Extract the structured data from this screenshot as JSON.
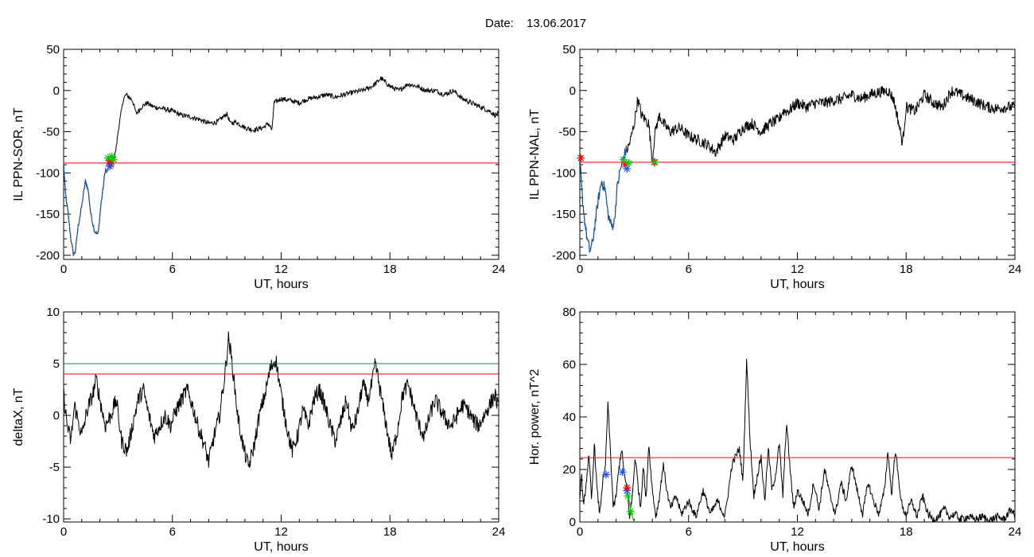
{
  "header": {
    "date_label": "Date:",
    "date_value": "13.06.2017"
  },
  "colors": {
    "trace": "#000000",
    "threshold": "#ff0000",
    "threshold2": "#00897b",
    "interval": "#1565c0",
    "marker_green": "#00cc00",
    "marker_blue": "#1e50ff",
    "marker_red": "#ff0000"
  },
  "chart_data": [
    {
      "id": "sor",
      "type": "line",
      "title": "",
      "xlabel": "UT, hours",
      "ylabel": "IL PPN-SOR, nT",
      "xlim": [
        0,
        24
      ],
      "ylim": [
        -205,
        50
      ],
      "xticks": [
        0,
        6,
        12,
        18,
        24
      ],
      "xticklabels": [
        "0",
        "6",
        "12",
        "18",
        "24"
      ],
      "yticks": [
        50,
        0,
        -50,
        -100,
        -150,
        -200
      ],
      "yticklabels": [
        "50",
        "0",
        "-50",
        "-100",
        "-150",
        "-200"
      ],
      "thresholds": [
        {
          "y": -88,
          "color": "#ff0000"
        }
      ],
      "highlight": {
        "x_range": [
          0,
          2.8
        ],
        "color": "#1565c0"
      },
      "markers": [
        {
          "x": 2.45,
          "y": -82,
          "color": "#00cc00"
        },
        {
          "x": 2.55,
          "y": -85,
          "color": "#00cc00"
        },
        {
          "x": 2.65,
          "y": -80,
          "color": "#00cc00"
        },
        {
          "x": 2.75,
          "y": -84,
          "color": "#00cc00"
        },
        {
          "x": 2.5,
          "y": -88,
          "color": "#ff0000"
        },
        {
          "x": 2.6,
          "y": -90,
          "color": "#ff0000"
        },
        {
          "x": 2.55,
          "y": -92,
          "color": "#1e50ff"
        }
      ],
      "series": [
        {
          "color": "#000000",
          "noise": 3,
          "x": [
            0,
            0.1,
            0.25,
            0.4,
            0.55,
            0.65,
            0.8,
            1.0,
            1.2,
            1.35,
            1.5,
            1.7,
            1.9,
            2.05,
            2.2,
            2.3,
            2.4,
            2.5,
            2.6,
            2.7,
            2.8,
            2.9,
            3.0,
            3.15,
            3.3,
            3.45,
            3.6,
            3.8,
            4.0,
            4.3,
            4.6,
            4.8,
            5.0,
            5.5,
            6.0,
            6.5,
            7.0,
            7.5,
            8.0,
            8.5,
            9.0,
            9.2,
            9.5,
            10.0,
            10.5,
            11.0,
            11.3,
            11.5,
            11.6,
            12.0,
            12.5,
            13.0,
            13.5,
            14.0,
            14.5,
            15.0,
            15.5,
            16.0,
            16.5,
            17.0,
            17.3,
            17.5,
            18.0,
            18.5,
            19.0,
            19.5,
            20.0,
            20.5,
            21.0,
            21.5,
            22.0,
            22.5,
            23.0,
            23.5,
            23.8,
            24.0
          ],
          "y": [
            -88,
            -125,
            -150,
            -180,
            -200,
            -195,
            -165,
            -140,
            -110,
            -120,
            -150,
            -170,
            -175,
            -140,
            -115,
            -95,
            -100,
            -90,
            -88,
            -85,
            -82,
            -70,
            -50,
            -30,
            -10,
            -5,
            -8,
            -12,
            -28,
            -20,
            -15,
            -18,
            -20,
            -22,
            -25,
            -30,
            -32,
            -35,
            -40,
            -38,
            -28,
            -40,
            -38,
            -45,
            -48,
            -45,
            -40,
            -48,
            -15,
            -10,
            -12,
            -15,
            -10,
            -8,
            -5,
            -8,
            -5,
            -2,
            0,
            5,
            10,
            15,
            5,
            0,
            8,
            5,
            0,
            0,
            -5,
            0,
            -10,
            -15,
            -20,
            -25,
            -30,
            -28
          ]
        }
      ]
    },
    {
      "id": "nal",
      "type": "line",
      "title": "",
      "xlabel": "UT, hours",
      "ylabel": "IL PPN-NAL, nT",
      "xlim": [
        0,
        24
      ],
      "ylim": [
        -205,
        50
      ],
      "xticks": [
        0,
        6,
        12,
        18,
        24
      ],
      "xticklabels": [
        "0",
        "6",
        "12",
        "18",
        "24"
      ],
      "yticks": [
        50,
        0,
        -50,
        -100,
        -150,
        -200
      ],
      "yticklabels": [
        "50",
        "0",
        "-50",
        "-100",
        "-150",
        "-200"
      ],
      "thresholds": [
        {
          "y": -87,
          "color": "#ff0000"
        }
      ],
      "highlight": {
        "x_range": [
          0,
          2.6
        ],
        "color": "#1565c0"
      },
      "markers": [
        {
          "x": 0.05,
          "y": -82,
          "color": "#ff0000"
        },
        {
          "x": 2.4,
          "y": -84,
          "color": "#00cc00"
        },
        {
          "x": 2.5,
          "y": -90,
          "color": "#ff0000"
        },
        {
          "x": 2.6,
          "y": -95,
          "color": "#1e50ff"
        },
        {
          "x": 2.7,
          "y": -88,
          "color": "#00cc00"
        },
        {
          "x": 4.1,
          "y": -87,
          "color": "#ff0000"
        },
        {
          "x": 4.15,
          "y": -87,
          "color": "#00cc00"
        }
      ],
      "series": [
        {
          "color": "#000000",
          "noise": 7,
          "x": [
            0,
            0.1,
            0.25,
            0.4,
            0.55,
            0.7,
            0.85,
            1.0,
            1.2,
            1.4,
            1.55,
            1.75,
            1.9,
            2.05,
            2.2,
            2.35,
            2.5,
            2.65,
            2.8,
            3.0,
            3.2,
            3.4,
            3.6,
            3.8,
            4.0,
            4.1,
            4.2,
            4.4,
            4.6,
            5.0,
            5.5,
            6.0,
            6.5,
            7.0,
            7.5,
            8.0,
            8.5,
            9.0,
            9.5,
            10.0,
            10.5,
            11.0,
            11.2,
            11.5,
            12.0,
            12.5,
            13.0,
            13.5,
            14.0,
            14.5,
            15.0,
            15.5,
            16.0,
            16.5,
            17.0,
            17.3,
            17.6,
            17.8,
            18.0,
            18.5,
            19.0,
            19.5,
            20.0,
            20.5,
            21.0,
            21.5,
            22.0,
            22.5,
            23.0,
            23.5,
            24.0
          ],
          "y": [
            -80,
            -120,
            -155,
            -180,
            -195,
            -185,
            -160,
            -135,
            -110,
            -120,
            -150,
            -165,
            -160,
            -120,
            -100,
            -85,
            -75,
            -70,
            -60,
            -40,
            -10,
            -30,
            -35,
            -40,
            -85,
            -60,
            -45,
            -30,
            -40,
            -50,
            -45,
            -55,
            -60,
            -65,
            -75,
            -55,
            -60,
            -45,
            -40,
            -50,
            -40,
            -35,
            -25,
            -25,
            -15,
            -20,
            -15,
            -15,
            -12,
            -10,
            -5,
            -10,
            -5,
            -2,
            0,
            -10,
            -40,
            -65,
            -20,
            -25,
            -5,
            -15,
            -20,
            0,
            -5,
            -10,
            -15,
            -20,
            -22,
            -20,
            -20
          ]
        }
      ]
    },
    {
      "id": "deltax",
      "type": "line",
      "title": "",
      "xlabel": "UT, hours",
      "ylabel": "deltaX, nT",
      "xlim": [
        0,
        24
      ],
      "ylim": [
        -10.3,
        10
      ],
      "xticks": [
        0,
        6,
        12,
        18,
        24
      ],
      "xticklabels": [
        "0",
        "6",
        "12",
        "18",
        "24"
      ],
      "yticks": [
        10,
        5,
        0,
        -5,
        -10
      ],
      "yticklabels": [
        "10",
        "5",
        "0",
        "-5",
        "-10"
      ],
      "thresholds": [
        {
          "y": 5,
          "color": "#00897b"
        },
        {
          "y": 4,
          "color": "#ff0000"
        }
      ],
      "markers": [],
      "series": [
        {
          "color": "#000000",
          "noise": 0.8,
          "x": [
            0,
            0.2,
            0.4,
            0.6,
            0.8,
            1.0,
            1.3,
            1.6,
            1.8,
            2.0,
            2.3,
            2.6,
            2.9,
            3.2,
            3.5,
            3.8,
            4.1,
            4.4,
            4.7,
            5.0,
            5.3,
            5.6,
            5.9,
            6.2,
            6.5,
            6.8,
            7.1,
            7.4,
            7.7,
            8.0,
            8.3,
            8.6,
            8.9,
            9.1,
            9.3,
            9.6,
            9.9,
            10.2,
            10.5,
            10.8,
            11.1,
            11.4,
            11.7,
            12.0,
            12.3,
            12.6,
            12.9,
            13.2,
            13.5,
            13.8,
            14.1,
            14.4,
            14.7,
            15.0,
            15.3,
            15.6,
            15.9,
            16.2,
            16.5,
            16.8,
            17.0,
            17.2,
            17.5,
            17.8,
            18.1,
            18.4,
            18.7,
            19.0,
            19.3,
            19.6,
            19.9,
            20.2,
            20.5,
            20.8,
            21.1,
            21.4,
            21.7,
            22.0,
            22.3,
            22.6,
            22.9,
            23.2,
            23.5,
            23.8,
            24.0
          ],
          "y": [
            2,
            -1,
            -2.5,
            1,
            -0.5,
            -2,
            0.5,
            2,
            3.5,
            1.5,
            -1,
            0,
            1.5,
            -2.5,
            -3.5,
            -1,
            1.5,
            2.5,
            0,
            -2,
            -1,
            0,
            -1,
            0.5,
            1.5,
            2.5,
            1,
            -1,
            -2.5,
            -4.5,
            -2,
            0,
            4,
            7.5,
            5,
            0,
            -3,
            -5,
            -3,
            0,
            2,
            4.5,
            5.5,
            2,
            -1,
            -3.5,
            -2,
            0.5,
            -1,
            1.5,
            2.5,
            1,
            -1,
            -2.5,
            -0.5,
            1.5,
            -1.5,
            0,
            3,
            1.5,
            3,
            5,
            2,
            -1,
            -4,
            -1.5,
            2,
            3,
            1,
            -1,
            -2,
            0,
            1.5,
            0.5,
            -0.5,
            -1,
            0,
            1,
            0.5,
            -0.5,
            -1,
            0,
            1,
            2,
            0.5
          ]
        }
      ]
    },
    {
      "id": "hpower",
      "type": "line",
      "title": "",
      "xlabel": "UT, hours",
      "ylabel": "Hor. power, nT^2",
      "xlim": [
        0,
        24
      ],
      "ylim": [
        0,
        80
      ],
      "xticks": [
        0,
        6,
        12,
        18,
        24
      ],
      "xticklabels": [
        "0",
        "6",
        "12",
        "18",
        "24"
      ],
      "yticks": [
        80,
        60,
        40,
        20,
        0
      ],
      "yticklabels": [
        "80",
        "60",
        "40",
        "20",
        "0"
      ],
      "thresholds": [
        {
          "y": 24.5,
          "color": "#ff0000"
        }
      ],
      "markers": [
        {
          "x": 1.45,
          "y": 18,
          "color": "#1e50ff"
        },
        {
          "x": 2.35,
          "y": 19,
          "color": "#1e50ff"
        },
        {
          "x": 2.6,
          "y": 12,
          "color": "#1e50ff"
        },
        {
          "x": 2.6,
          "y": 13,
          "color": "#ff0000"
        },
        {
          "x": 2.65,
          "y": 10,
          "color": "#00cc00"
        },
        {
          "x": 2.8,
          "y": 4,
          "color": "#00cc00"
        }
      ],
      "green_segment": {
        "x": [
          2.6,
          2.7,
          2.8,
          2.9,
          3.0
        ],
        "y": [
          12,
          9,
          5,
          2,
          0
        ],
        "color": "#00cc00"
      },
      "series": [
        {
          "color": "#000000",
          "noise": 1.5,
          "x": [
            0,
            0.1,
            0.2,
            0.35,
            0.5,
            0.65,
            0.8,
            0.95,
            1.1,
            1.25,
            1.4,
            1.55,
            1.7,
            1.85,
            2.0,
            2.15,
            2.3,
            2.45,
            2.6,
            2.75,
            2.9,
            3.05,
            3.2,
            3.35,
            3.5,
            3.65,
            3.8,
            4.0,
            4.2,
            4.4,
            4.6,
            4.8,
            5.0,
            5.3,
            5.6,
            6.0,
            6.4,
            6.8,
            7.2,
            7.6,
            8.0,
            8.4,
            8.8,
            9.0,
            9.2,
            9.4,
            9.6,
            9.8,
            10.0,
            10.2,
            10.4,
            10.6,
            10.8,
            11.0,
            11.2,
            11.4,
            11.6,
            11.8,
            12.0,
            12.3,
            12.6,
            12.9,
            13.2,
            13.5,
            13.8,
            14.1,
            14.4,
            14.7,
            15.0,
            15.3,
            15.6,
            15.9,
            16.2,
            16.5,
            16.8,
            17.0,
            17.2,
            17.4,
            17.6,
            17.8,
            18.0,
            18.3,
            18.6,
            18.9,
            19.2,
            19.5,
            19.8,
            20.1,
            20.4,
            20.7,
            21.0,
            21.4,
            21.8,
            22.2,
            22.6,
            23.0,
            23.4,
            23.8,
            24.0
          ],
          "y": [
            10,
            18,
            5,
            15,
            25,
            8,
            30,
            12,
            3,
            15,
            20,
            45,
            25,
            5,
            10,
            20,
            28,
            18,
            12,
            2,
            10,
            25,
            15,
            5,
            22,
            8,
            30,
            12,
            2,
            10,
            22,
            12,
            5,
            10,
            3,
            8,
            2,
            12,
            3,
            8,
            2,
            22,
            28,
            15,
            62,
            30,
            10,
            18,
            25,
            8,
            28,
            12,
            18,
            30,
            10,
            38,
            20,
            5,
            12,
            8,
            3,
            15,
            5,
            20,
            10,
            3,
            15,
            8,
            22,
            12,
            3,
            15,
            8,
            3,
            12,
            27,
            10,
            28,
            15,
            5,
            3,
            8,
            2,
            10,
            3,
            1,
            2,
            5,
            2,
            3,
            1,
            2,
            1,
            2,
            0.5,
            2,
            1,
            5,
            2
          ]
        }
      ]
    }
  ]
}
